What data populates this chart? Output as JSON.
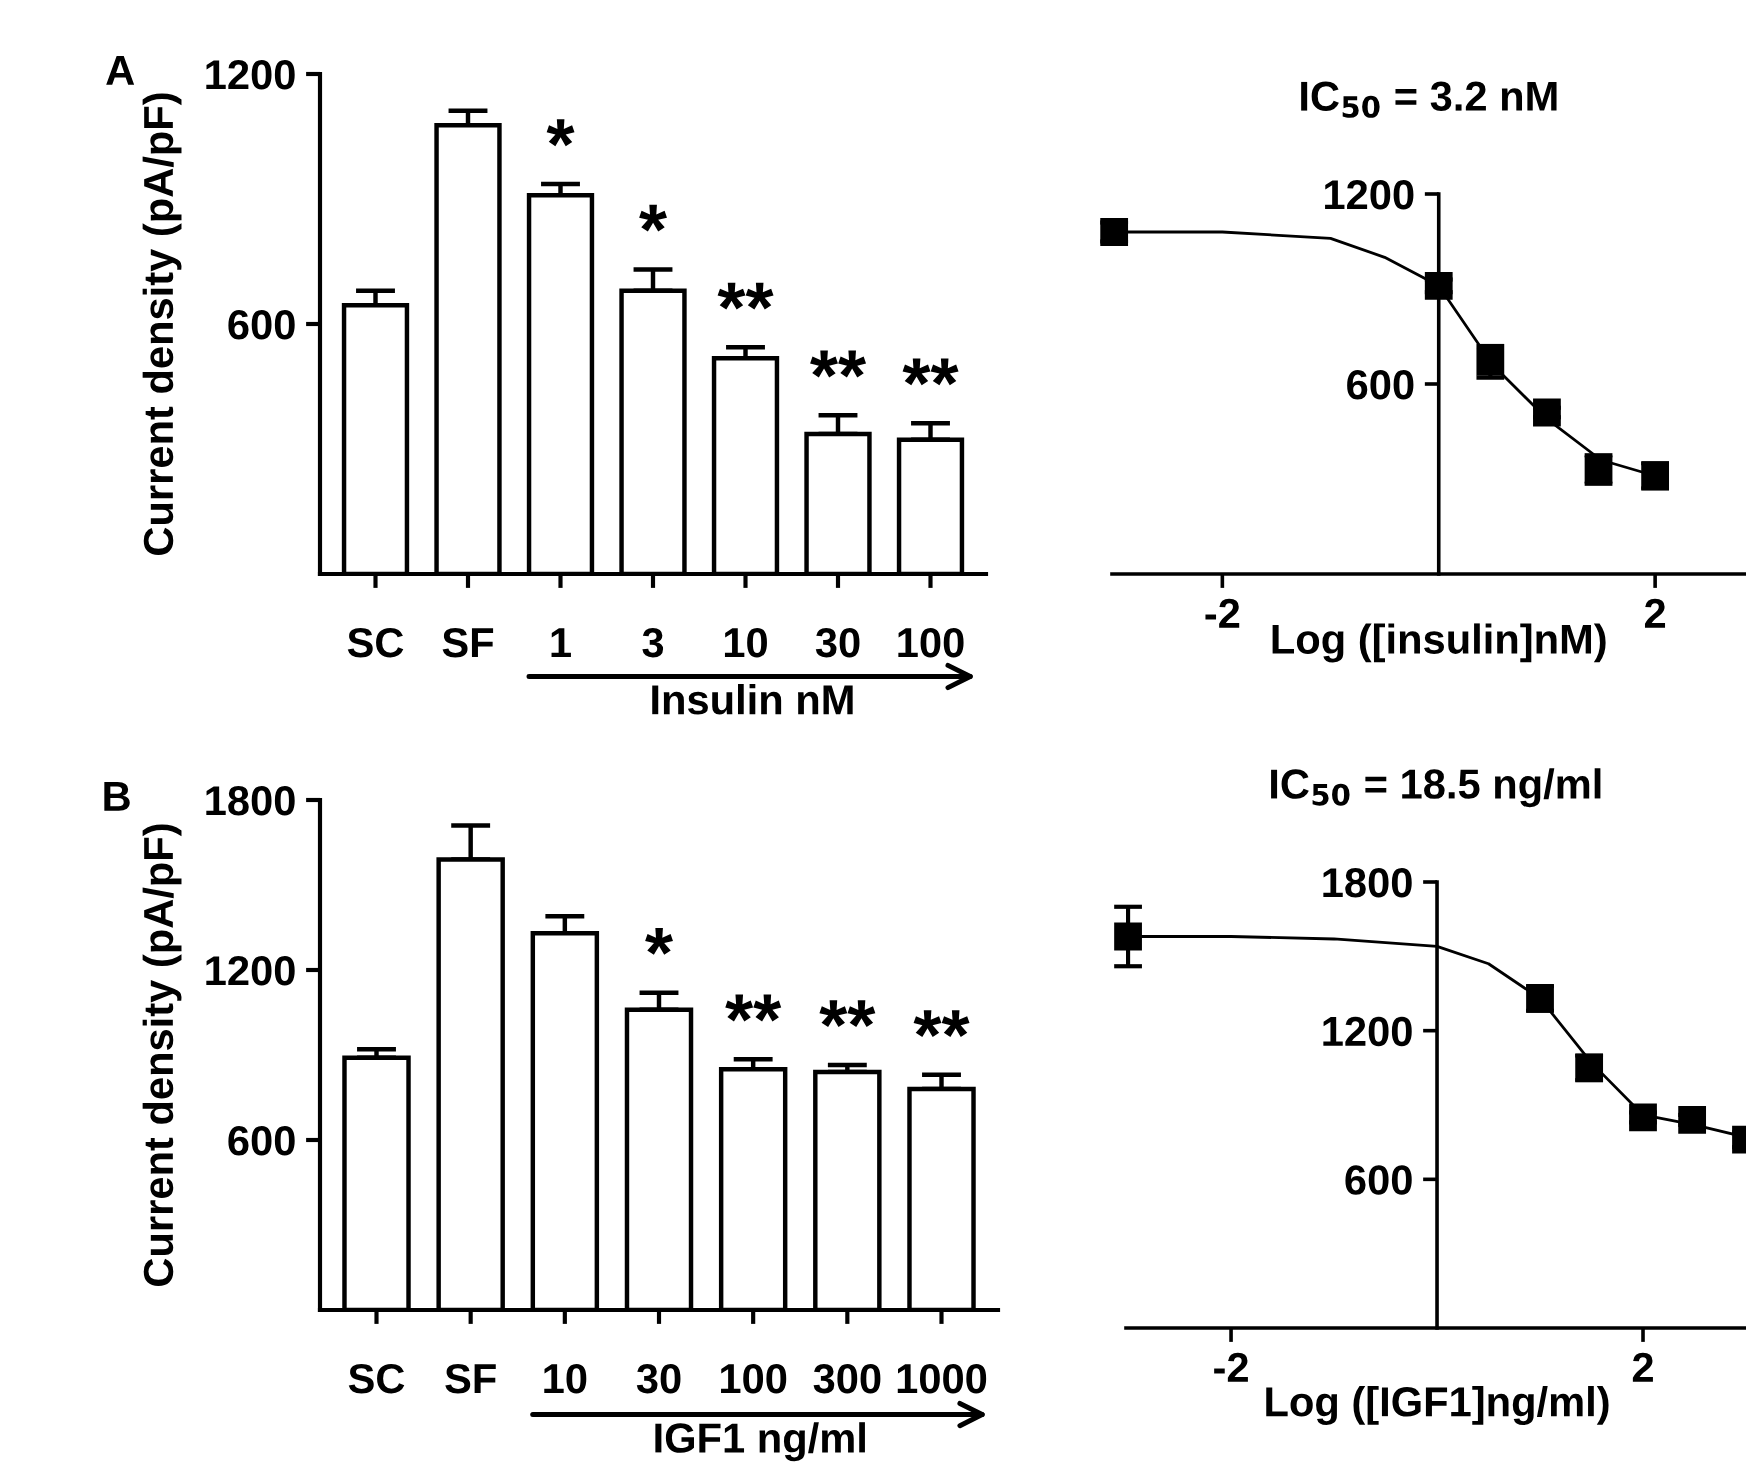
{
  "chart_data": [
    {
      "type": "bar",
      "ylabel": "Current density (pA/pF)",
      "xlabel": "Insulin nM",
      "categories": [
        "SC",
        "SF",
        "1",
        "3",
        "10",
        "30",
        "100"
      ],
      "values": [
        645,
        1077,
        909,
        680,
        518,
        336,
        322
      ],
      "errors": [
        35,
        35,
        27,
        51,
        26,
        45,
        40
      ],
      "color": "#ffffff",
      "ylim": [
        0,
        1200
      ],
      "yticks": [
        600,
        1200
      ],
      "grid": false,
      "annotations": [
        "A",
        {
          "text": "*",
          "x": "1",
          "y": 936
        },
        {
          "text": "*",
          "x": "3",
          "y": 731
        },
        {
          "text": "**",
          "x": "10",
          "y": 544
        },
        {
          "text": "**",
          "x": "30",
          "y": 381
        },
        {
          "text": "**",
          "x": "100",
          "y": 362
        }
      ]
    },
    {
      "type": "scatter",
      "title": "IC$_{50}$ = 3.2 nM",
      "xlabel": "Log ([insulin]nM)",
      "xlim": [
        -3.02,
        2.84
      ],
      "xticks": [
        -2,
        2
      ],
      "ylim": [
        0,
        1200
      ],
      "yticks": [
        600,
        1200
      ],
      "grid": false,
      "series": [
        {
          "type": "line",
          "color": "#000000",
          "marker": "none",
          "x": [
            -3,
            -2,
            -1,
            -0.5,
            0,
            0.5,
            1,
            1.5,
            2
          ],
          "values": [
            1080,
            1080,
            1060,
            1000,
            910,
            660,
            490,
            360,
            310
          ]
        },
        {
          "type": "scatter",
          "color": "#000000",
          "marker": "square",
          "x": [
            -3,
            0,
            0.477,
            1,
            1.477,
            2
          ],
          "values": [
            1080,
            910,
            670,
            510,
            330,
            310
          ],
          "errors": [
            30,
            20,
            50,
            15,
            45,
            40
          ]
        }
      ]
    },
    {
      "type": "bar",
      "ylabel": "Current density (pA/pF)",
      "xlabel": "IGF1 ng/ml",
      "categories": [
        "SC",
        "SF",
        "10",
        "30",
        "100",
        "300",
        "1000"
      ],
      "values": [
        890,
        1590,
        1330,
        1060,
        850,
        840,
        780
      ],
      "errors": [
        30,
        120,
        60,
        60,
        35,
        25,
        50
      ],
      "color": "#ffffff",
      "ylim": [
        0,
        1800
      ],
      "yticks": [
        600,
        1200,
        1800
      ],
      "grid": false,
      "annotations": [
        "B",
        {
          "text": "*",
          "x": "30",
          "y": 1120
        },
        {
          "text": "**",
          "x": "100",
          "y": 885
        },
        {
          "text": "**",
          "x": "300",
          "y": 865
        },
        {
          "text": "**",
          "x": "1000",
          "y": 830
        }
      ]
    },
    {
      "type": "scatter",
      "title": "IC$_{50}$ = 18.5 ng/ml",
      "xlabel": "Log ([IGF1]ng/ml)",
      "xlim": [
        -3.02,
        3.0
      ],
      "xticks": [
        -2,
        2
      ],
      "ylim": [
        0,
        1800
      ],
      "yticks": [
        600,
        1200,
        1800
      ],
      "grid": false,
      "series": [
        {
          "type": "line",
          "color": "#000000",
          "marker": "none",
          "x": [
            -3,
            -2,
            -1,
            0,
            0.5,
            1,
            1.5,
            2,
            2.5,
            3
          ],
          "values": [
            1580,
            1580,
            1570,
            1540,
            1470,
            1330,
            1070,
            860,
            820,
            770
          ]
        },
        {
          "type": "scatter",
          "color": "#000000",
          "marker": "square",
          "x": [
            -3,
            1,
            1.477,
            2,
            2.477,
            3
          ],
          "values": [
            1580,
            1330,
            1050,
            850,
            840,
            760
          ],
          "errors": [
            120,
            50,
            50,
            20,
            20,
            30
          ]
        }
      ]
    }
  ]
}
